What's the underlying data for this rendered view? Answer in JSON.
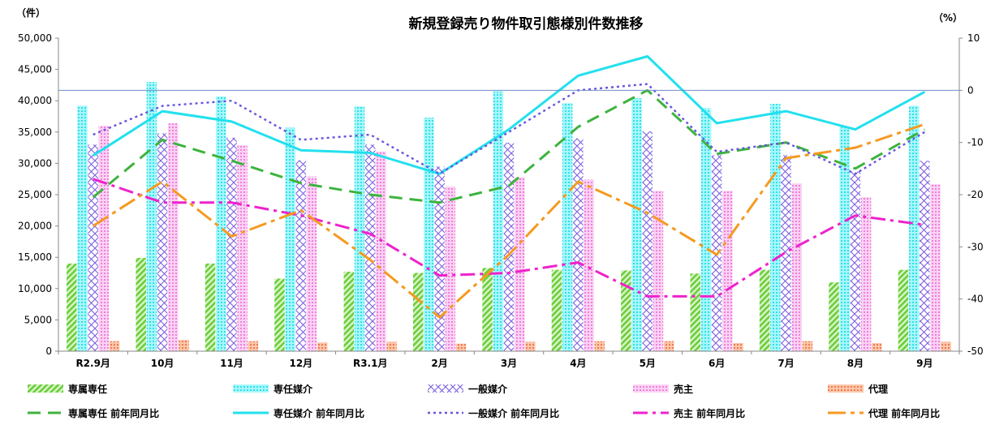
{
  "chart_data": {
    "type": "bar",
    "title": "新規登録売り物件取引態様別件数推移",
    "left_unit": "（件）",
    "right_unit": "（%）",
    "categories": [
      "R2.9月",
      "10月",
      "11月",
      "12月",
      "R3.1月",
      "2月",
      "3月",
      "4月",
      "5月",
      "6月",
      "7月",
      "8月",
      "9月"
    ],
    "ylim_left": [
      0,
      50000
    ],
    "left_ticks": [
      "0",
      "5,000",
      "10,000",
      "15,000",
      "20,000",
      "25,000",
      "30,000",
      "35,000",
      "40,000",
      "45,000",
      "50,000"
    ],
    "ylim_right": [
      -50,
      10
    ],
    "right_ticks": [
      "-50",
      "-40",
      "-30",
      "-20",
      "-10",
      "0",
      "10"
    ],
    "bar_series": [
      {
        "name": "専属専任",
        "color": "#7fd650",
        "pattern": "diag",
        "values": [
          14000,
          14900,
          14000,
          11600,
          12700,
          12500,
          13300,
          13000,
          12900,
          12400,
          13000,
          11000,
          13000
        ]
      },
      {
        "name": "専任媒介",
        "color": "#4fe8ee",
        "pattern": "dots",
        "values": [
          39200,
          43000,
          40700,
          35700,
          39100,
          37300,
          41500,
          39600,
          40400,
          38800,
          39500,
          35800,
          39200
        ]
      },
      {
        "name": "一般媒介",
        "color": "#8866dd",
        "pattern": "cross",
        "values": [
          33000,
          34800,
          34100,
          30500,
          33000,
          29500,
          33300,
          34000,
          35100,
          31300,
          31300,
          28700,
          30400
        ]
      },
      {
        "name": "売主",
        "color": "#f08ee0",
        "pattern": "dotsPink",
        "values": [
          36000,
          36400,
          32900,
          27900,
          31900,
          26300,
          27800,
          27400,
          25600,
          25600,
          26800,
          24600,
          26700
        ]
      },
      {
        "name": "代理",
        "color": "#f08a60",
        "pattern": "dotsOrange",
        "values": [
          1600,
          1800,
          1600,
          1400,
          1500,
          1200,
          1500,
          1600,
          1600,
          1300,
          1600,
          1300,
          1500
        ]
      }
    ],
    "line_series": [
      {
        "name": "専属専任 前年同月比",
        "color": "#3db33d",
        "dash": "16,9",
        "width": 3,
        "values": [
          -20.5,
          -9.5,
          -13.5,
          -17.8,
          -20,
          -21.5,
          -18.3,
          -7,
          0,
          -12.2,
          -10,
          -15,
          -7.5
        ]
      },
      {
        "name": "専任媒介 前年同月比",
        "color": "#22e0ee",
        "dash": "",
        "width": 3,
        "values": [
          -12.5,
          -4,
          -6,
          -11.5,
          -12,
          -16,
          -7.5,
          2.8,
          6.5,
          -6.3,
          -4,
          -7.5,
          -0.3
        ]
      },
      {
        "name": "一般媒介 前年同月比",
        "color": "#6655dd",
        "dash": "3,4",
        "width": 2.4,
        "values": [
          -8.5,
          -3,
          -2,
          -9.5,
          -8.5,
          -16,
          -8,
          0,
          1.2,
          -11.8,
          -10,
          -16,
          -8
        ]
      },
      {
        "name": "売主 前年同月比",
        "color": "#ee22cc",
        "dash": "18,6,4,6",
        "width": 3,
        "values": [
          -17,
          -21.5,
          -21.5,
          -24,
          -27.5,
          -35.5,
          -35,
          -33,
          -39.5,
          -39.5,
          -31,
          -24,
          -25.8
        ]
      },
      {
        "name": "代理 前年同月比",
        "color": "#f59a20",
        "dash": "22,6,5,6",
        "width": 3,
        "values": [
          -26,
          -17.5,
          -28,
          -23,
          -32.5,
          -43.5,
          -31.5,
          -17.5,
          -23.5,
          -31.5,
          -13,
          -11,
          -6.5
        ]
      }
    ],
    "legend_rows": [
      [
        "専属専任",
        "専任媒介",
        "一般媒介",
        "売主",
        "代理"
      ],
      [
        "専属専任 前年同月比",
        "専任媒介 前年同月比",
        "一般媒介 前年同月比",
        "売主 前年同月比",
        "代理 前年同月比"
      ]
    ],
    "legend_position": "bottom",
    "grid": false
  }
}
